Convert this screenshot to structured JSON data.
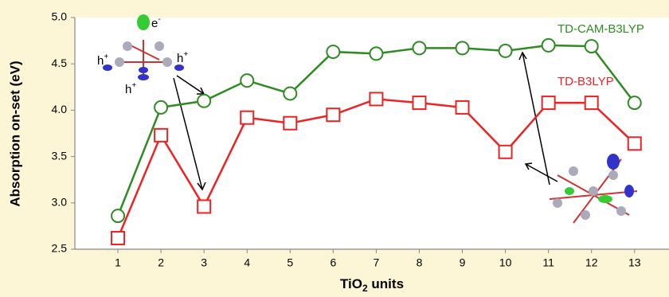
{
  "chart_data": {
    "type": "line",
    "ylabel": "Absorption on-set (eV)",
    "xlabel_parts": [
      "TiO",
      "2",
      " units"
    ],
    "x": [
      1,
      2,
      3,
      4,
      5,
      6,
      7,
      8,
      9,
      10,
      11,
      12,
      13
    ],
    "xlim": [
      0,
      13.8
    ],
    "xticks": [
      1,
      2,
      3,
      4,
      5,
      6,
      7,
      8,
      9,
      10,
      11,
      12,
      13
    ],
    "ylim": [
      2.5,
      5.0
    ],
    "yticks": [
      2.5,
      {
        "value": 3.0,
        "label": "3.0"
      },
      3.5,
      {
        "value": 4.0,
        "label": "4.0"
      },
      4.5,
      {
        "value": 5.0,
        "label": "5.0"
      }
    ],
    "grid": false,
    "series": [
      {
        "name": "TD-CAM-B3LYP",
        "color": "#2e8b22",
        "marker": "circle",
        "values": [
          2.86,
          4.03,
          4.1,
          4.32,
          4.18,
          4.63,
          4.61,
          4.67,
          4.67,
          4.64,
          4.7,
          4.69,
          4.08
        ]
      },
      {
        "name": "TD-B3LYP",
        "color": "#ee2222",
        "marker": "square",
        "values": [
          2.62,
          3.73,
          2.96,
          3.92,
          3.86,
          3.95,
          4.12,
          4.08,
          4.03,
          3.55,
          4.08,
          4.08,
          3.64
        ]
      }
    ],
    "annotations": [
      {
        "text": "e",
        "sup": "-"
      },
      {
        "text": "h",
        "sup": "+"
      },
      {
        "text": "h",
        "sup": "+"
      },
      {
        "text": "h",
        "sup": "+"
      }
    ]
  }
}
